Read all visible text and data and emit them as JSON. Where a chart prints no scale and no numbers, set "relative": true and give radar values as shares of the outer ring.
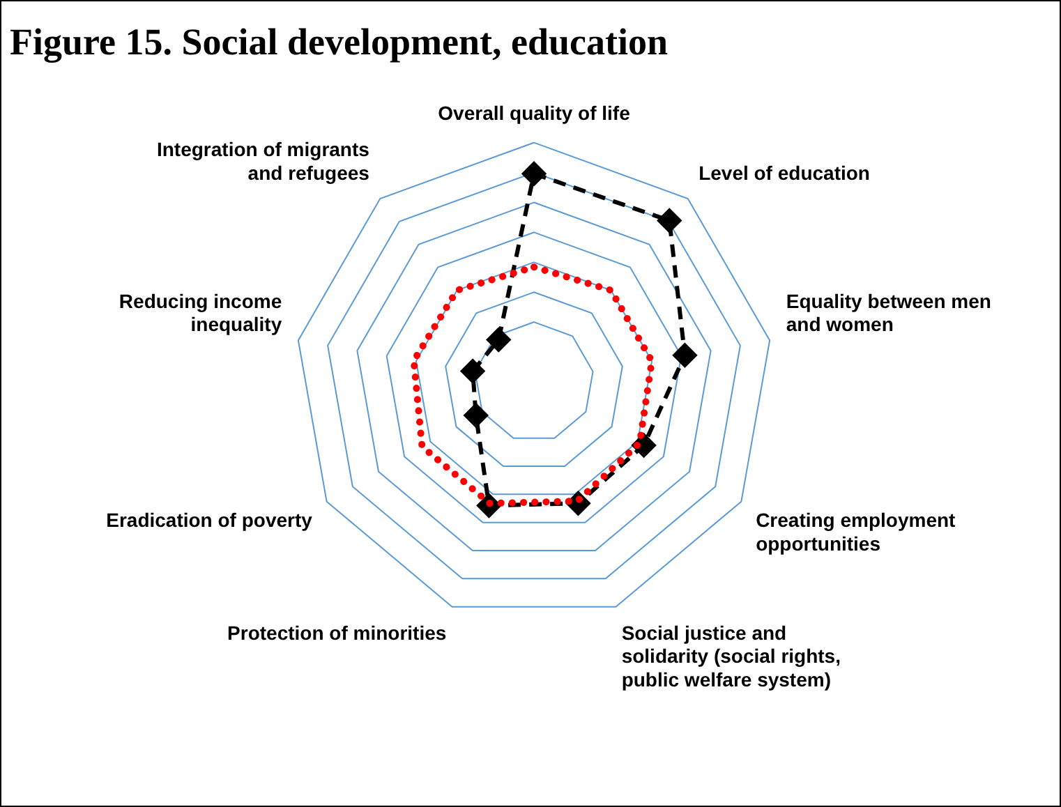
{
  "chart_data": {
    "type": "radar",
    "title": "Figure 15. Social development, education",
    "relative": true,
    "grid": true,
    "categories": [
      "Overall quality of life",
      "Level of education",
      "Equality between men\nand women",
      "Creating employment\nopportunities",
      "Social justice and\nsolidarity (social rights,\npublic welfare system)",
      "Protection of minorities",
      "Eradication of poverty",
      "Reducing income\ninequality",
      "Integration of migrants\nand refugees"
    ],
    "series": [
      {
        "color": "#ff0000",
        "line_style": "dotted",
        "marker": "none",
        "values": [
          0.48,
          0.5,
          0.5,
          0.51,
          0.53,
          0.54,
          0.54,
          0.51,
          0.5
        ]
      },
      {
        "color": "#000000",
        "line_style": "dashed",
        "marker": "diamond",
        "values": [
          0.87,
          0.88,
          0.64,
          0.53,
          0.54,
          0.55,
          0.28,
          0.26,
          0.23
        ]
      }
    ]
  }
}
